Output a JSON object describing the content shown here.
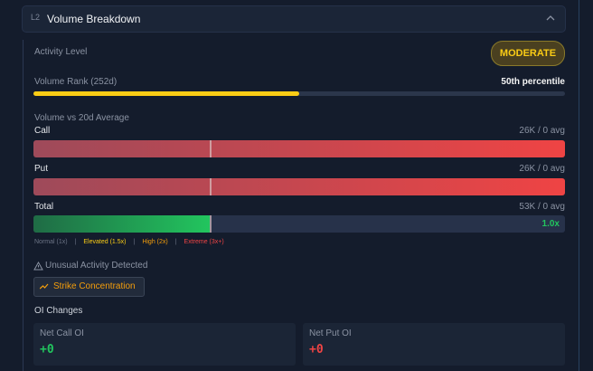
{
  "header": {
    "level": "L2",
    "title": "Volume Breakdown"
  },
  "activity": {
    "label": "Activity Level",
    "badge": "MODERATE"
  },
  "rank": {
    "label": "Volume Rank (252d)",
    "percentile": {
      "value": 50,
      "label": "50th percentile"
    }
  },
  "volume": {
    "title": "Volume vs 20d Average",
    "rows": [
      {
        "name": "Call",
        "value": "26K / 0 avg"
      },
      {
        "name": "Put",
        "value": "26K / 0 avg"
      },
      {
        "name": "Total",
        "value": "53K / 0 avg",
        "ratio": "1.0x"
      }
    ],
    "legend": [
      "Normal (1x)",
      "|",
      "Elevated (1.5x)",
      "|",
      "High (2x)",
      "|",
      "Extreme (3x+)"
    ]
  },
  "alert": {
    "title": "Unusual Activity Detected",
    "tag": "Strike Concentration"
  },
  "oi": {
    "title": "OI Changes",
    "cards": [
      {
        "label": "Net Call OI",
        "value": "+0"
      },
      {
        "label": "Net Put OI",
        "value": "+0"
      }
    ]
  }
}
